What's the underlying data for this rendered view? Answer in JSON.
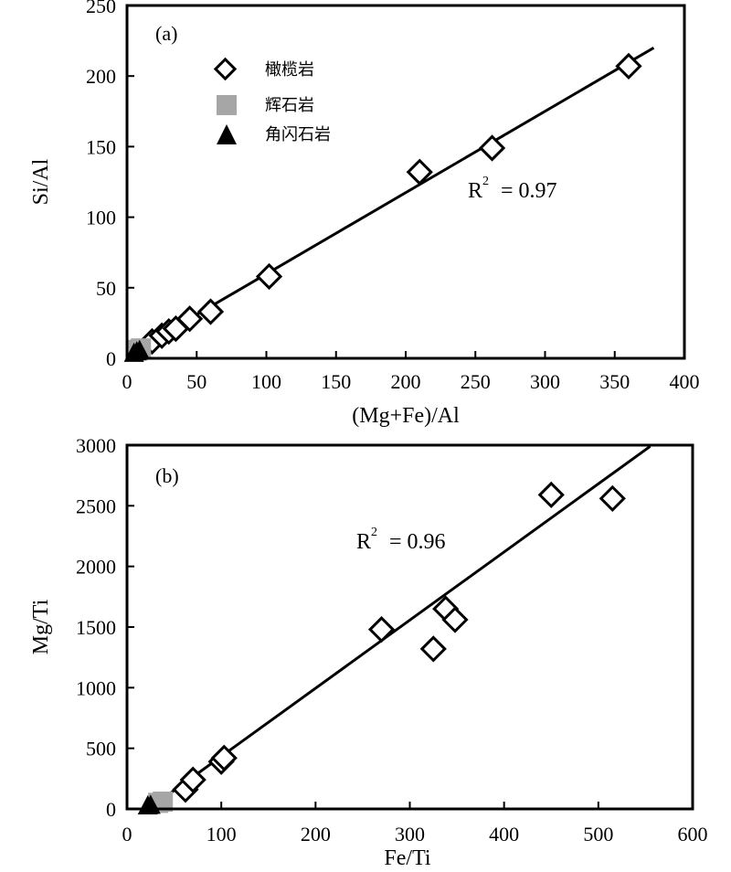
{
  "legend": {
    "items": [
      {
        "label": "橄榄岩",
        "marker": "diamond-open",
        "color": "#000000"
      },
      {
        "label": "辉石岩",
        "marker": "square-filled",
        "color": "#a6a6a6"
      },
      {
        "label": "角闪石岩",
        "marker": "triangle-filled",
        "color": "#000000"
      }
    ]
  },
  "chart_data": [
    {
      "type": "scatter",
      "panel_label": "(a)",
      "xlabel": "(Mg+Fe)/Al",
      "ylabel": "Si/Al",
      "xlim": [
        0,
        400
      ],
      "ylim": [
        0,
        250
      ],
      "xticks": [
        0,
        50,
        100,
        150,
        200,
        250,
        300,
        350,
        400
      ],
      "yticks": [
        0,
        50,
        100,
        150,
        200,
        250
      ],
      "r2_label": "R",
      "r2_value": "= 0.97",
      "fit_line": {
        "x": [
          5,
          378
        ],
        "y": [
          5,
          220
        ]
      },
      "series": [
        {
          "name": "橄榄岩",
          "marker": "diamond-open",
          "points": [
            [
              18,
              12
            ],
            [
              25,
              16
            ],
            [
              30,
              19
            ],
            [
              35,
              21
            ],
            [
              45,
              28
            ],
            [
              60,
              33
            ],
            [
              102,
              58
            ],
            [
              210,
              132
            ],
            [
              262,
              149
            ],
            [
              360,
              207
            ]
          ]
        },
        {
          "name": "辉石岩",
          "marker": "square-filled",
          "points": [
            [
              8,
              6
            ],
            [
              10,
              7
            ]
          ]
        },
        {
          "name": "角闪石岩",
          "marker": "triangle-filled",
          "points": [
            [
              5,
              4
            ],
            [
              7,
              5
            ],
            [
              9,
              6
            ]
          ]
        }
      ]
    },
    {
      "type": "scatter",
      "panel_label": "(b)",
      "xlabel": "Fe/Ti",
      "ylabel": "Mg/Ti",
      "xlim": [
        0,
        600
      ],
      "ylim": [
        0,
        3000
      ],
      "xticks": [
        0,
        100,
        200,
        300,
        400,
        500,
        600
      ],
      "yticks": [
        0,
        500,
        1000,
        1500,
        2000,
        2500,
        3000
      ],
      "r2_label": "R",
      "r2_value": "= 0.96",
      "fit_line": {
        "x": [
          30,
          555
        ],
        "y": [
          40,
          2990
        ]
      },
      "series": [
        {
          "name": "橄榄岩",
          "marker": "diamond-open",
          "points": [
            [
              62,
              160
            ],
            [
              70,
              240
            ],
            [
              100,
              390
            ],
            [
              103,
              420
            ],
            [
              270,
              1480
            ],
            [
              325,
              1320
            ],
            [
              338,
              1650
            ],
            [
              348,
              1560
            ],
            [
              450,
              2590
            ],
            [
              515,
              2560
            ]
          ]
        },
        {
          "name": "辉石岩",
          "marker": "square-filled",
          "points": [
            [
              33,
              50
            ],
            [
              38,
              60
            ]
          ]
        },
        {
          "name": "角闪石岩",
          "marker": "triangle-filled",
          "points": [
            [
              22,
              30
            ],
            [
              25,
              35
            ]
          ]
        }
      ]
    }
  ]
}
